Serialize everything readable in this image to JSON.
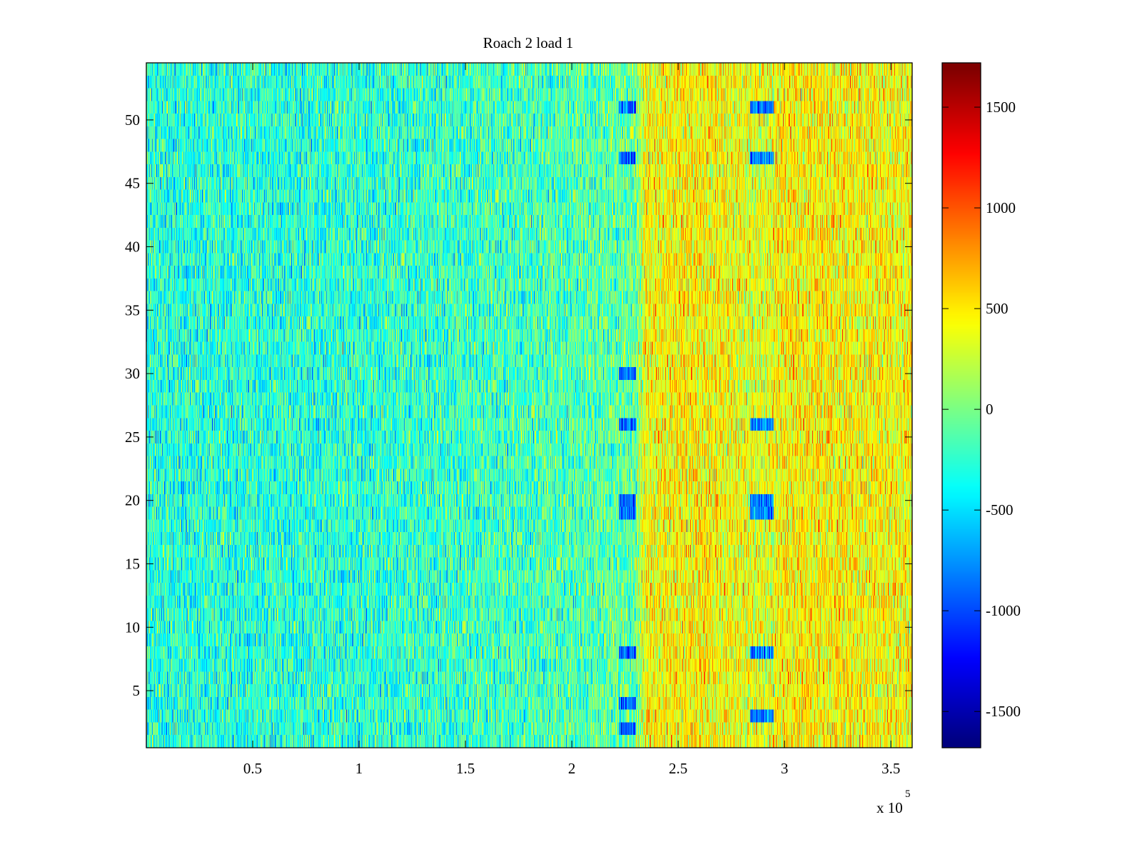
{
  "chart_data": {
    "type": "heatmap",
    "title": "Roach 2 load 1",
    "xlabel": "",
    "ylabel": "",
    "x_multiplier_label": "x 10",
    "x_multiplier_exponent": "5",
    "xlim": [
      0,
      3.6
    ],
    "ylim": [
      0.5,
      54.5
    ],
    "rows": 54,
    "xticks": [
      0.5,
      1,
      1.5,
      2,
      2.5,
      3,
      3.5
    ],
    "xtick_labels": [
      "0.5",
      "1",
      "1.5",
      "2",
      "2.5",
      "3",
      "3.5"
    ],
    "yticks": [
      5,
      10,
      15,
      20,
      25,
      30,
      35,
      40,
      45,
      50
    ],
    "ytick_labels": [
      "5",
      "10",
      "15",
      "20",
      "25",
      "30",
      "35",
      "40",
      "45",
      "50"
    ],
    "colormap": "jet",
    "clim": [
      -1680,
      1720
    ],
    "colorbar": {
      "ticks": [
        -1500,
        -1000,
        -500,
        0,
        500,
        1000,
        1500
      ],
      "tick_labels": [
        "-1500",
        "-1000",
        "-500",
        "0",
        "500",
        "1000",
        "1500"
      ],
      "placement": "right"
    },
    "mean_profile": {
      "x": [
        0,
        1.0,
        2.0,
        2.3,
        2.35,
        2.6,
        2.9,
        3.0,
        3.6
      ],
      "value": [
        -280,
        -260,
        -150,
        -60,
        420,
        480,
        330,
        480,
        430
      ]
    },
    "low_value_patches": [
      {
        "x": [
          2.22,
          2.3
        ],
        "rows": [
          2,
          4,
          8,
          19,
          20,
          26,
          30,
          47,
          51
        ],
        "value": -900
      },
      {
        "x": [
          2.84,
          2.95
        ],
        "rows": [
          3,
          8,
          19,
          20,
          26,
          47,
          51
        ],
        "value": -800
      }
    ],
    "noise_std": 260
  }
}
